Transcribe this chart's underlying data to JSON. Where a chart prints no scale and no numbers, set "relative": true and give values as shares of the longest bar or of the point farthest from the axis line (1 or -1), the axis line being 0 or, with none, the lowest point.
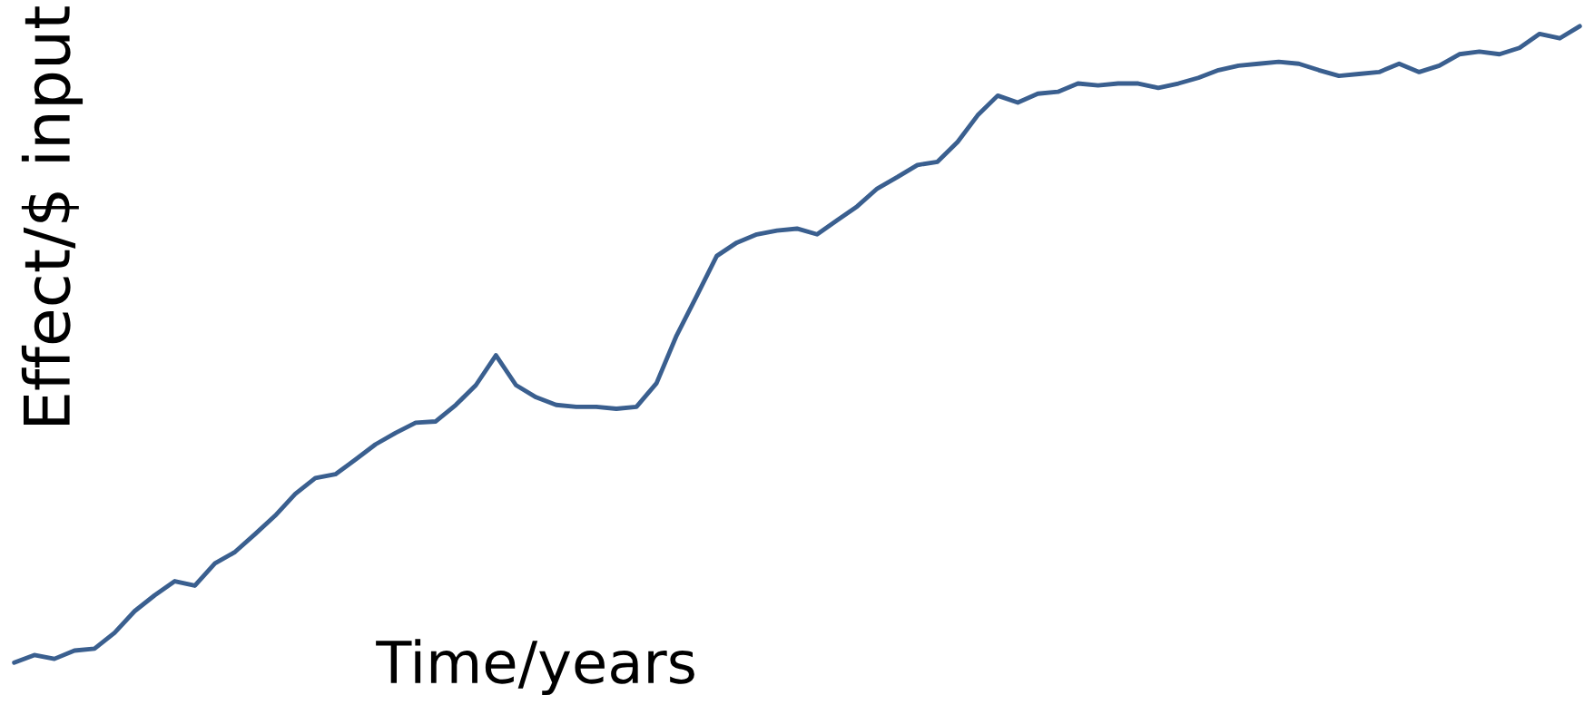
{
  "chart_data": {
    "type": "line",
    "relative": true,
    "xlabel": "Time/years",
    "ylabel": "Effect/$ input",
    "marker": "none",
    "line_style": "solid",
    "categories": [
      null,
      null,
      null,
      null,
      null,
      null,
      null,
      null,
      null,
      null,
      null,
      null,
      null,
      null,
      null,
      null,
      null,
      null,
      null,
      null,
      null,
      null,
      null,
      null,
      null,
      null,
      null,
      null,
      null,
      null,
      null,
      null,
      null,
      null,
      null,
      null,
      null,
      null,
      null,
      null,
      null,
      null,
      null,
      null,
      null,
      null,
      null,
      null,
      null,
      null,
      null,
      null,
      null,
      null,
      null,
      null,
      null,
      null,
      null,
      null,
      null,
      null,
      null,
      null,
      null,
      null,
      null,
      null,
      null,
      null,
      null,
      null,
      null,
      null,
      null,
      null,
      null,
      null,
      null
    ],
    "series": [
      {
        "color": "#3a5f8f",
        "values": [
          0,
          0.012,
          0.006,
          0.019,
          0.022,
          0.047,
          0.081,
          0.106,
          0.128,
          0.121,
          0.156,
          0.174,
          0.202,
          0.231,
          0.265,
          0.29,
          0.296,
          0.319,
          0.343,
          0.361,
          0.377,
          0.379,
          0.405,
          0.436,
          0.483,
          0.436,
          0.417,
          0.405,
          0.402,
          0.402,
          0.399,
          0.402,
          0.439,
          0.514,
          0.576,
          0.639,
          0.66,
          0.673,
          0.679,
          0.682,
          0.673,
          0.695,
          0.717,
          0.745,
          0.763,
          0.782,
          0.787,
          0.818,
          0.86,
          0.891,
          0.88,
          0.894,
          0.897,
          0.91,
          0.907,
          0.91,
          0.91,
          0.903,
          0.91,
          0.919,
          0.931,
          0.938,
          0.941,
          0.944,
          0.941,
          0.931,
          0.922,
          0.925,
          0.928,
          0.941,
          0.928,
          0.938,
          0.956,
          0.96,
          0.956,
          0.966,
          0.988,
          0.981,
          1
        ]
      }
    ]
  }
}
